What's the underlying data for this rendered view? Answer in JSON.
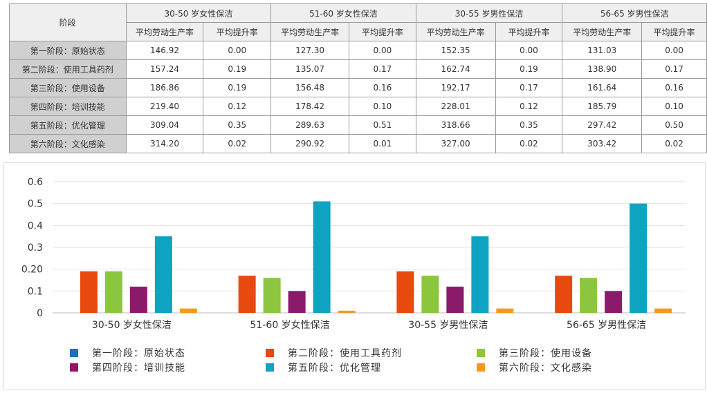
{
  "table": {
    "stage_header": "阶段",
    "groups": [
      "30-50 岁女性保洁",
      "51-60 岁女性保洁",
      "30-55 岁男性保洁",
      "56-65 岁男性保洁"
    ],
    "sub_headers": [
      "平均劳动生产率",
      "平均提升率"
    ],
    "rows": [
      {
        "stage": "第一阶段：原始状态",
        "values": [
          "146.92",
          "0.00",
          "127.30",
          "0.00",
          "152.35",
          "0.00",
          "131.03",
          "0.00"
        ]
      },
      {
        "stage": "第二阶段：使用工具药剂",
        "values": [
          "157.24",
          "0.19",
          "135.07",
          "0.17",
          "162.74",
          "0.19",
          "138.90",
          "0.17"
        ]
      },
      {
        "stage": "第三阶段：使用设备",
        "values": [
          "186.86",
          "0.19",
          "156.48",
          "0.16",
          "192.17",
          "0.17",
          "161.64",
          "0.16"
        ]
      },
      {
        "stage": "第四阶段：培训技能",
        "values": [
          "219.40",
          "0.12",
          "178.42",
          "0.10",
          "228.01",
          "0.12",
          "185.79",
          "0.10"
        ]
      },
      {
        "stage": "第五阶段：优化管理",
        "values": [
          "309.04",
          "0.35",
          "289.63",
          "0.51",
          "318.66",
          "0.35",
          "297.42",
          "0.50"
        ]
      },
      {
        "stage": "第六阶段：文化感染",
        "values": [
          "314.20",
          "0.02",
          "290.92",
          "0.01",
          "327.00",
          "0.02",
          "303.42",
          "0.02"
        ]
      }
    ]
  },
  "chart_data": {
    "type": "bar",
    "categories": [
      "30-50 岁女性保洁",
      "51-60 岁女性保洁",
      "30-55 岁男性保洁",
      "56-65 岁男性保洁"
    ],
    "yticks": [
      "0",
      "0.1",
      "0.20",
      "0.3",
      "0.4",
      "0.5",
      "0.6"
    ],
    "ylim": [
      0,
      0.6
    ],
    "grid": true,
    "legend_placement": "bottom",
    "series": [
      {
        "name": "第一阶段：原始状态",
        "color": "#1f6fbf",
        "values": [
          0,
          0,
          0,
          0
        ]
      },
      {
        "name": "第二阶段：使用工具药剂",
        "color": "#e8490f",
        "values": [
          0.19,
          0.17,
          0.19,
          0.17
        ]
      },
      {
        "name": "第三阶段：使用设备",
        "color": "#8cc63e",
        "values": [
          0.19,
          0.16,
          0.17,
          0.16
        ]
      },
      {
        "name": "第四阶段：培训技能",
        "color": "#8b1a6b",
        "values": [
          0.12,
          0.1,
          0.12,
          0.1
        ]
      },
      {
        "name": "第五阶段：优化管理",
        "color": "#0fa3c2",
        "values": [
          0.35,
          0.51,
          0.35,
          0.5
        ]
      },
      {
        "name": "第六阶段：文化感染",
        "color": "#f39a1e",
        "values": [
          0.02,
          0.01,
          0.02,
          0.02
        ]
      }
    ]
  }
}
